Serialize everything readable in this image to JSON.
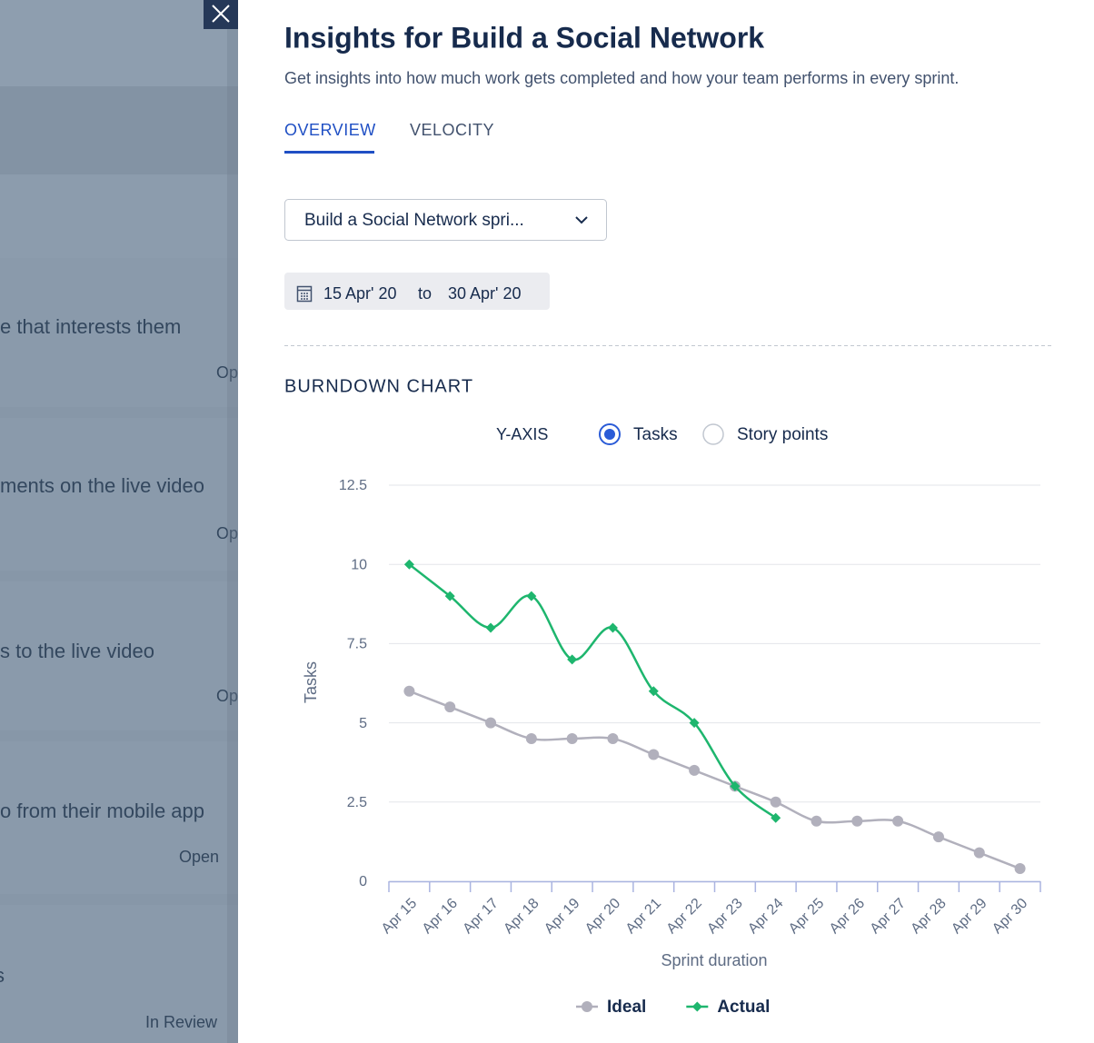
{
  "background_cards": [
    {
      "text": "e that interests them",
      "status": "Op"
    },
    {
      "text": "ments on the live video",
      "status": "Op"
    },
    {
      "text": "s to the live video",
      "status": "Op"
    },
    {
      "text": "o from their mobile app",
      "status": "Open"
    },
    {
      "text": "s",
      "status": "In Review"
    }
  ],
  "header": {
    "title": "Insights for Build a Social Network",
    "subtitle": "Get insights into how much work gets completed and how your team performs in every sprint."
  },
  "tabs": [
    "OVERVIEW",
    "VELOCITY"
  ],
  "sprint_select": "Build a Social Network spri...",
  "date_range": {
    "start": "15 Apr' 20",
    "separator": "to",
    "end": "30 Apr' 20"
  },
  "section_title": "BURNDOWN CHART",
  "y_axis_toggle": {
    "label": "Y-AXIS",
    "options": [
      "Tasks",
      "Story points"
    ]
  },
  "chart_data": {
    "type": "line",
    "categories": [
      "Apr 15",
      "Apr 16",
      "Apr 17",
      "Apr 18",
      "Apr 19",
      "Apr 20",
      "Apr 21",
      "Apr 22",
      "Apr 23",
      "Apr 24",
      "Apr 25",
      "Apr 26",
      "Apr 27",
      "Apr 28",
      "Apr 29",
      "Apr 30"
    ],
    "series": [
      {
        "name": "Ideal",
        "color": "#b1b0bc",
        "marker": "circle",
        "values": [
          6,
          5.5,
          5,
          4.5,
          4.5,
          4.5,
          4,
          3.5,
          3,
          2.5,
          1.9,
          1.9,
          1.9,
          1.4,
          0.9,
          0.4
        ]
      },
      {
        "name": "Actual",
        "color": "#1eb66e",
        "marker": "diamond",
        "values": [
          10,
          9,
          8,
          9,
          7,
          8,
          6,
          5,
          3,
          2,
          null,
          null,
          null,
          null,
          null,
          null
        ]
      }
    ],
    "ylim": [
      0,
      12.5
    ],
    "yticks": [
      0,
      2.5,
      5,
      7.5,
      10,
      12.5
    ],
    "x_label": "Sprint duration",
    "y_label": "Tasks",
    "grid": true,
    "smooth": true,
    "legend": "bottom"
  }
}
